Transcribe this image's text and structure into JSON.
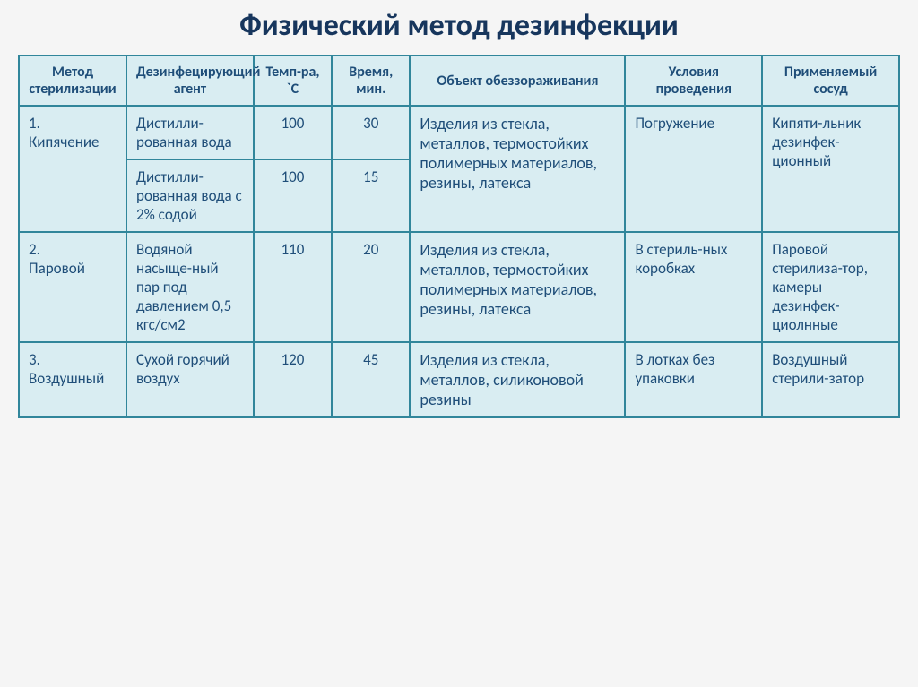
{
  "title": "Физический метод дезинфекции",
  "columns": [
    "Метод стерилизации",
    "Дезинфецирующий агент",
    "Темп-ра, `С",
    "Время, мин.",
    "Объект обеззораживания",
    "Условия проведения",
    "Применяемый сосуд"
  ],
  "rows": {
    "r1": {
      "method": "1.\nКипячение",
      "agent_a": "Дистилли-рованная вода",
      "temp_a": "100",
      "time_a": "30",
      "agent_b": "Дистилли-рованная вода с 2% содой",
      "temp_b": "100",
      "time_b": "15",
      "object": "Изделия из стекла, металлов, термостойких полимерных материалов, резины, латекса",
      "cond": "Погружение",
      "vessel": "Кипяти-льник дезинфек-ционный"
    },
    "r2": {
      "method": "2.\nПаровой",
      "agent": "Водяной насыще-ный пар под давлением 0,5 кгс/см2",
      "temp": "110",
      "time": "20",
      "object": "Изделия из стекла, металлов, термостойких полимерных материалов, резины, латекса",
      "cond": "В стериль-ных коробках",
      "vessel": "Паровой стерилиза-тор,\nкамеры дезинфек-циолнные"
    },
    "r3": {
      "method": "3.\nВоздушный",
      "agent": "Сухой горячий воздух",
      "temp": "120",
      "time": "45",
      "object": "Изделия из стекла, металлов, силиконовой резины",
      "cond": "В лотках без упаковки",
      "vessel": "Воздушный стерили-затор"
    }
  },
  "style": {
    "title_color": "#17365d",
    "border_color": "#31869b",
    "cell_bg": "#d9edf2",
    "text_color": "#1f4e79",
    "title_fontsize": 34,
    "header_fontsize": 16,
    "cell_fontsize": 17
  }
}
